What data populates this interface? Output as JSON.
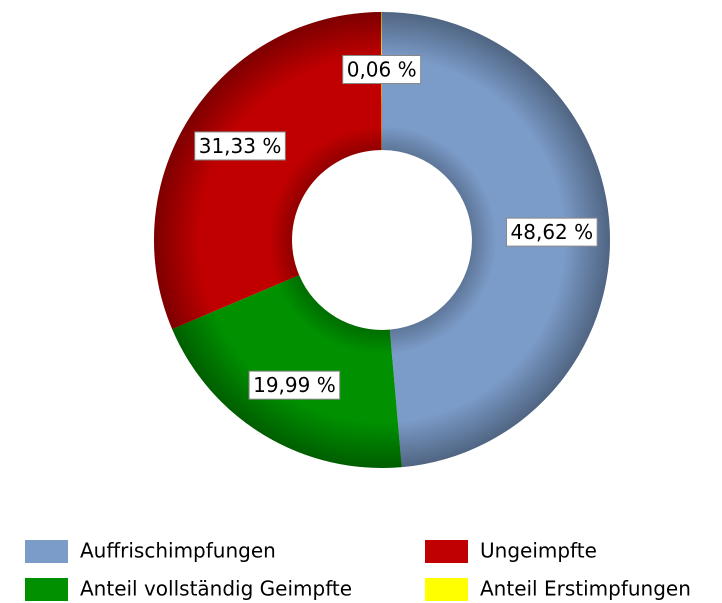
{
  "chart_data": {
    "type": "donut",
    "series": [
      {
        "name": "Auffrischimpfungen",
        "color": "#7b9bc8",
        "values": [
          48.62
        ],
        "value_labels": [
          "48,62 %"
        ]
      },
      {
        "name": "Anteil vollständig Geimpfte",
        "color": "#009000",
        "values": [
          19.99
        ],
        "value_labels": [
          "19,99 %"
        ]
      },
      {
        "name": "Ungeimpfte",
        "color": "#c00000",
        "values": [
          31.33
        ],
        "value_labels": [
          "31,33 %"
        ]
      },
      {
        "name": "Anteil Erstimpfungen",
        "color": "#ffff00",
        "values": [
          0.06
        ],
        "value_labels": [
          "0,06 %"
        ]
      }
    ]
  }
}
